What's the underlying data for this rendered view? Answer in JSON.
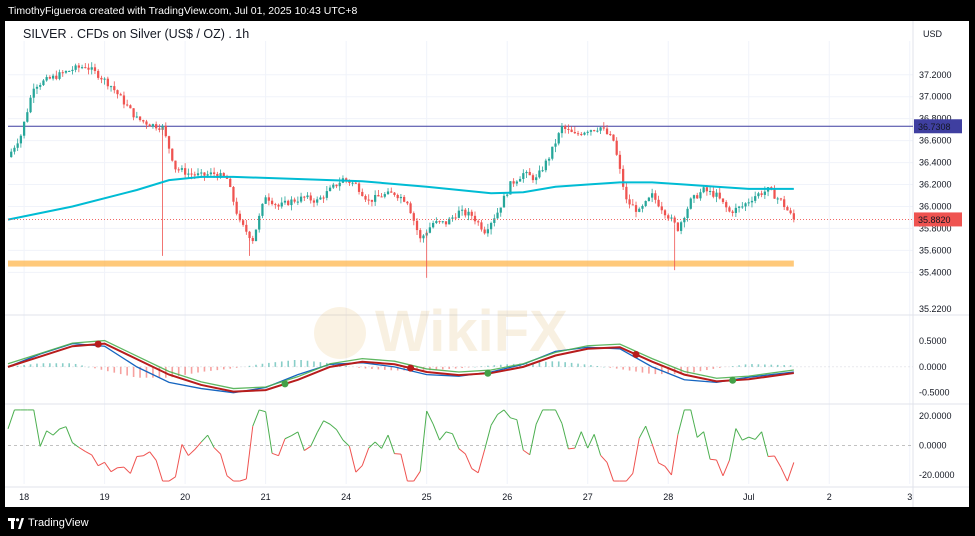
{
  "header": {
    "creator_line": "TimothyFigueroa created with TradingView.com, Jul 01, 2025 10:43 UTC+8"
  },
  "footer": {
    "brand": "TradingView"
  },
  "watermark": "WikiFX",
  "colors": {
    "up": "#26a69a",
    "down": "#ef5350",
    "ma": "#00bcd4",
    "support": "#ffb74d",
    "hline": "#3f3fa0",
    "macd_line": "#1565c0",
    "signal_line": "#b71c1c",
    "osc": "#4caf50"
  },
  "chart_data": {
    "type": "candlestick",
    "title": "SILVER . CFDs on Silver (US$ / OZ) . 1h",
    "currency": "USD",
    "price_axis_ticks": [
      "37.2000",
      "37.0000",
      "36.8000",
      "36.6000",
      "36.4000",
      "36.2000",
      "36.0000",
      "35.8000",
      "35.6000",
      "35.4000"
    ],
    "price_ylim": [
      35.23,
      37.38
    ],
    "x_labels": [
      "18",
      "19",
      "20",
      "21",
      "24",
      "25",
      "26",
      "27",
      "28",
      "Jul",
      "2",
      "3"
    ],
    "price_path": [
      [
        0,
        36.45
      ],
      [
        4,
        36.65
      ],
      [
        8,
        37.1
      ],
      [
        12,
        37.15
      ],
      [
        16,
        37.2
      ],
      [
        20,
        37.25
      ],
      [
        24,
        37.28
      ],
      [
        28,
        37.2
      ],
      [
        32,
        37.1
      ],
      [
        36,
        36.95
      ],
      [
        40,
        36.8
      ],
      [
        44,
        36.75
      ],
      [
        48,
        36.72
      ],
      [
        52,
        36.35
      ],
      [
        56,
        36.3
      ],
      [
        60,
        36.28
      ],
      [
        64,
        36.3
      ],
      [
        68,
        36.25
      ],
      [
        72,
        35.85
      ],
      [
        76,
        35.7
      ],
      [
        80,
        36.1
      ],
      [
        84,
        36.0
      ],
      [
        88,
        36.05
      ],
      [
        92,
        36.08
      ],
      [
        96,
        36.05
      ],
      [
        100,
        36.15
      ],
      [
        104,
        36.25
      ],
      [
        108,
        36.2
      ],
      [
        112,
        36.05
      ],
      [
        116,
        36.1
      ],
      [
        120,
        36.12
      ],
      [
        124,
        36.05
      ],
      [
        128,
        35.7
      ],
      [
        132,
        35.85
      ],
      [
        136,
        35.85
      ],
      [
        140,
        35.95
      ],
      [
        144,
        35.92
      ],
      [
        148,
        35.78
      ],
      [
        152,
        35.95
      ],
      [
        156,
        36.2
      ],
      [
        160,
        36.3
      ],
      [
        164,
        36.25
      ],
      [
        168,
        36.45
      ],
      [
        172,
        36.72
      ],
      [
        176,
        36.65
      ],
      [
        180,
        36.7
      ],
      [
        184,
        36.72
      ],
      [
        188,
        36.6
      ],
      [
        192,
        36.05
      ],
      [
        196,
        35.95
      ],
      [
        200,
        36.1
      ],
      [
        204,
        35.95
      ],
      [
        208,
        35.8
      ],
      [
        212,
        36.05
      ],
      [
        216,
        36.15
      ],
      [
        220,
        36.1
      ],
      [
        224,
        35.95
      ],
      [
        228,
        36.0
      ],
      [
        232,
        36.1
      ],
      [
        236,
        36.15
      ],
      [
        240,
        36.05
      ],
      [
        244,
        35.88
      ]
    ],
    "candle_count": 244,
    "last_bar_index": 244,
    "axis_max_index": 281,
    "day_start_index": [
      5,
      30,
      55,
      80,
      105,
      130,
      155,
      180,
      205,
      230,
      255,
      280
    ],
    "ma_200": [
      [
        0,
        35.88
      ],
      [
        20,
        36.0
      ],
      [
        40,
        36.15
      ],
      [
        50,
        36.24
      ],
      [
        60,
        36.27
      ],
      [
        70,
        36.27
      ],
      [
        90,
        36.25
      ],
      [
        110,
        36.23
      ],
      [
        130,
        36.18
      ],
      [
        150,
        36.12
      ],
      [
        160,
        36.13
      ],
      [
        170,
        36.18
      ],
      [
        180,
        36.2
      ],
      [
        190,
        36.22
      ],
      [
        200,
        36.22
      ],
      [
        210,
        36.2
      ],
      [
        220,
        36.18
      ],
      [
        230,
        36.16
      ],
      [
        244,
        36.16
      ]
    ],
    "support_level": 35.48,
    "resistance_line": 36.7308,
    "last_price": 35.882,
    "price_labels": [
      "36.7308",
      "35.8820"
    ],
    "macd": {
      "ticks": [
        "0.5000",
        "0.0000",
        "-0.5000"
      ],
      "ylim": [
        -0.7,
        0.85
      ],
      "top_value": "35.2200",
      "macd_line": [
        [
          0,
          0
        ],
        [
          10,
          0.25
        ],
        [
          20,
          0.45
        ],
        [
          30,
          0.4
        ],
        [
          40,
          0.0
        ],
        [
          50,
          -0.3
        ],
        [
          60,
          -0.42
        ],
        [
          70,
          -0.5
        ],
        [
          80,
          -0.4
        ],
        [
          90,
          -0.15
        ],
        [
          100,
          0.05
        ],
        [
          110,
          0.08
        ],
        [
          120,
          0.0
        ],
        [
          130,
          -0.15
        ],
        [
          140,
          -0.18
        ],
        [
          150,
          -0.1
        ],
        [
          160,
          0.05
        ],
        [
          170,
          0.3
        ],
        [
          180,
          0.38
        ],
        [
          190,
          0.35
        ],
        [
          200,
          0.0
        ],
        [
          210,
          -0.25
        ],
        [
          220,
          -0.3
        ],
        [
          230,
          -0.2
        ],
        [
          244,
          -0.1
        ]
      ],
      "signal_line": [
        [
          0,
          0
        ],
        [
          10,
          0.2
        ],
        [
          20,
          0.4
        ],
        [
          30,
          0.45
        ],
        [
          40,
          0.15
        ],
        [
          50,
          -0.15
        ],
        [
          60,
          -0.35
        ],
        [
          70,
          -0.48
        ],
        [
          80,
          -0.45
        ],
        [
          90,
          -0.25
        ],
        [
          100,
          0.0
        ],
        [
          110,
          0.1
        ],
        [
          120,
          0.05
        ],
        [
          130,
          -0.1
        ],
        [
          140,
          -0.16
        ],
        [
          150,
          -0.12
        ],
        [
          160,
          0.0
        ],
        [
          170,
          0.22
        ],
        [
          180,
          0.35
        ],
        [
          190,
          0.38
        ],
        [
          200,
          0.1
        ],
        [
          210,
          -0.15
        ],
        [
          220,
          -0.28
        ],
        [
          230,
          -0.24
        ],
        [
          244,
          -0.12
        ]
      ],
      "cross_down": [
        28,
        125,
        195
      ],
      "cross_up": [
        86,
        149,
        225
      ]
    },
    "oscillator": {
      "ticks": [
        "20.0000",
        "0.0000",
        "-20.0000"
      ],
      "ylim": [
        -26,
        28
      ]
    }
  }
}
